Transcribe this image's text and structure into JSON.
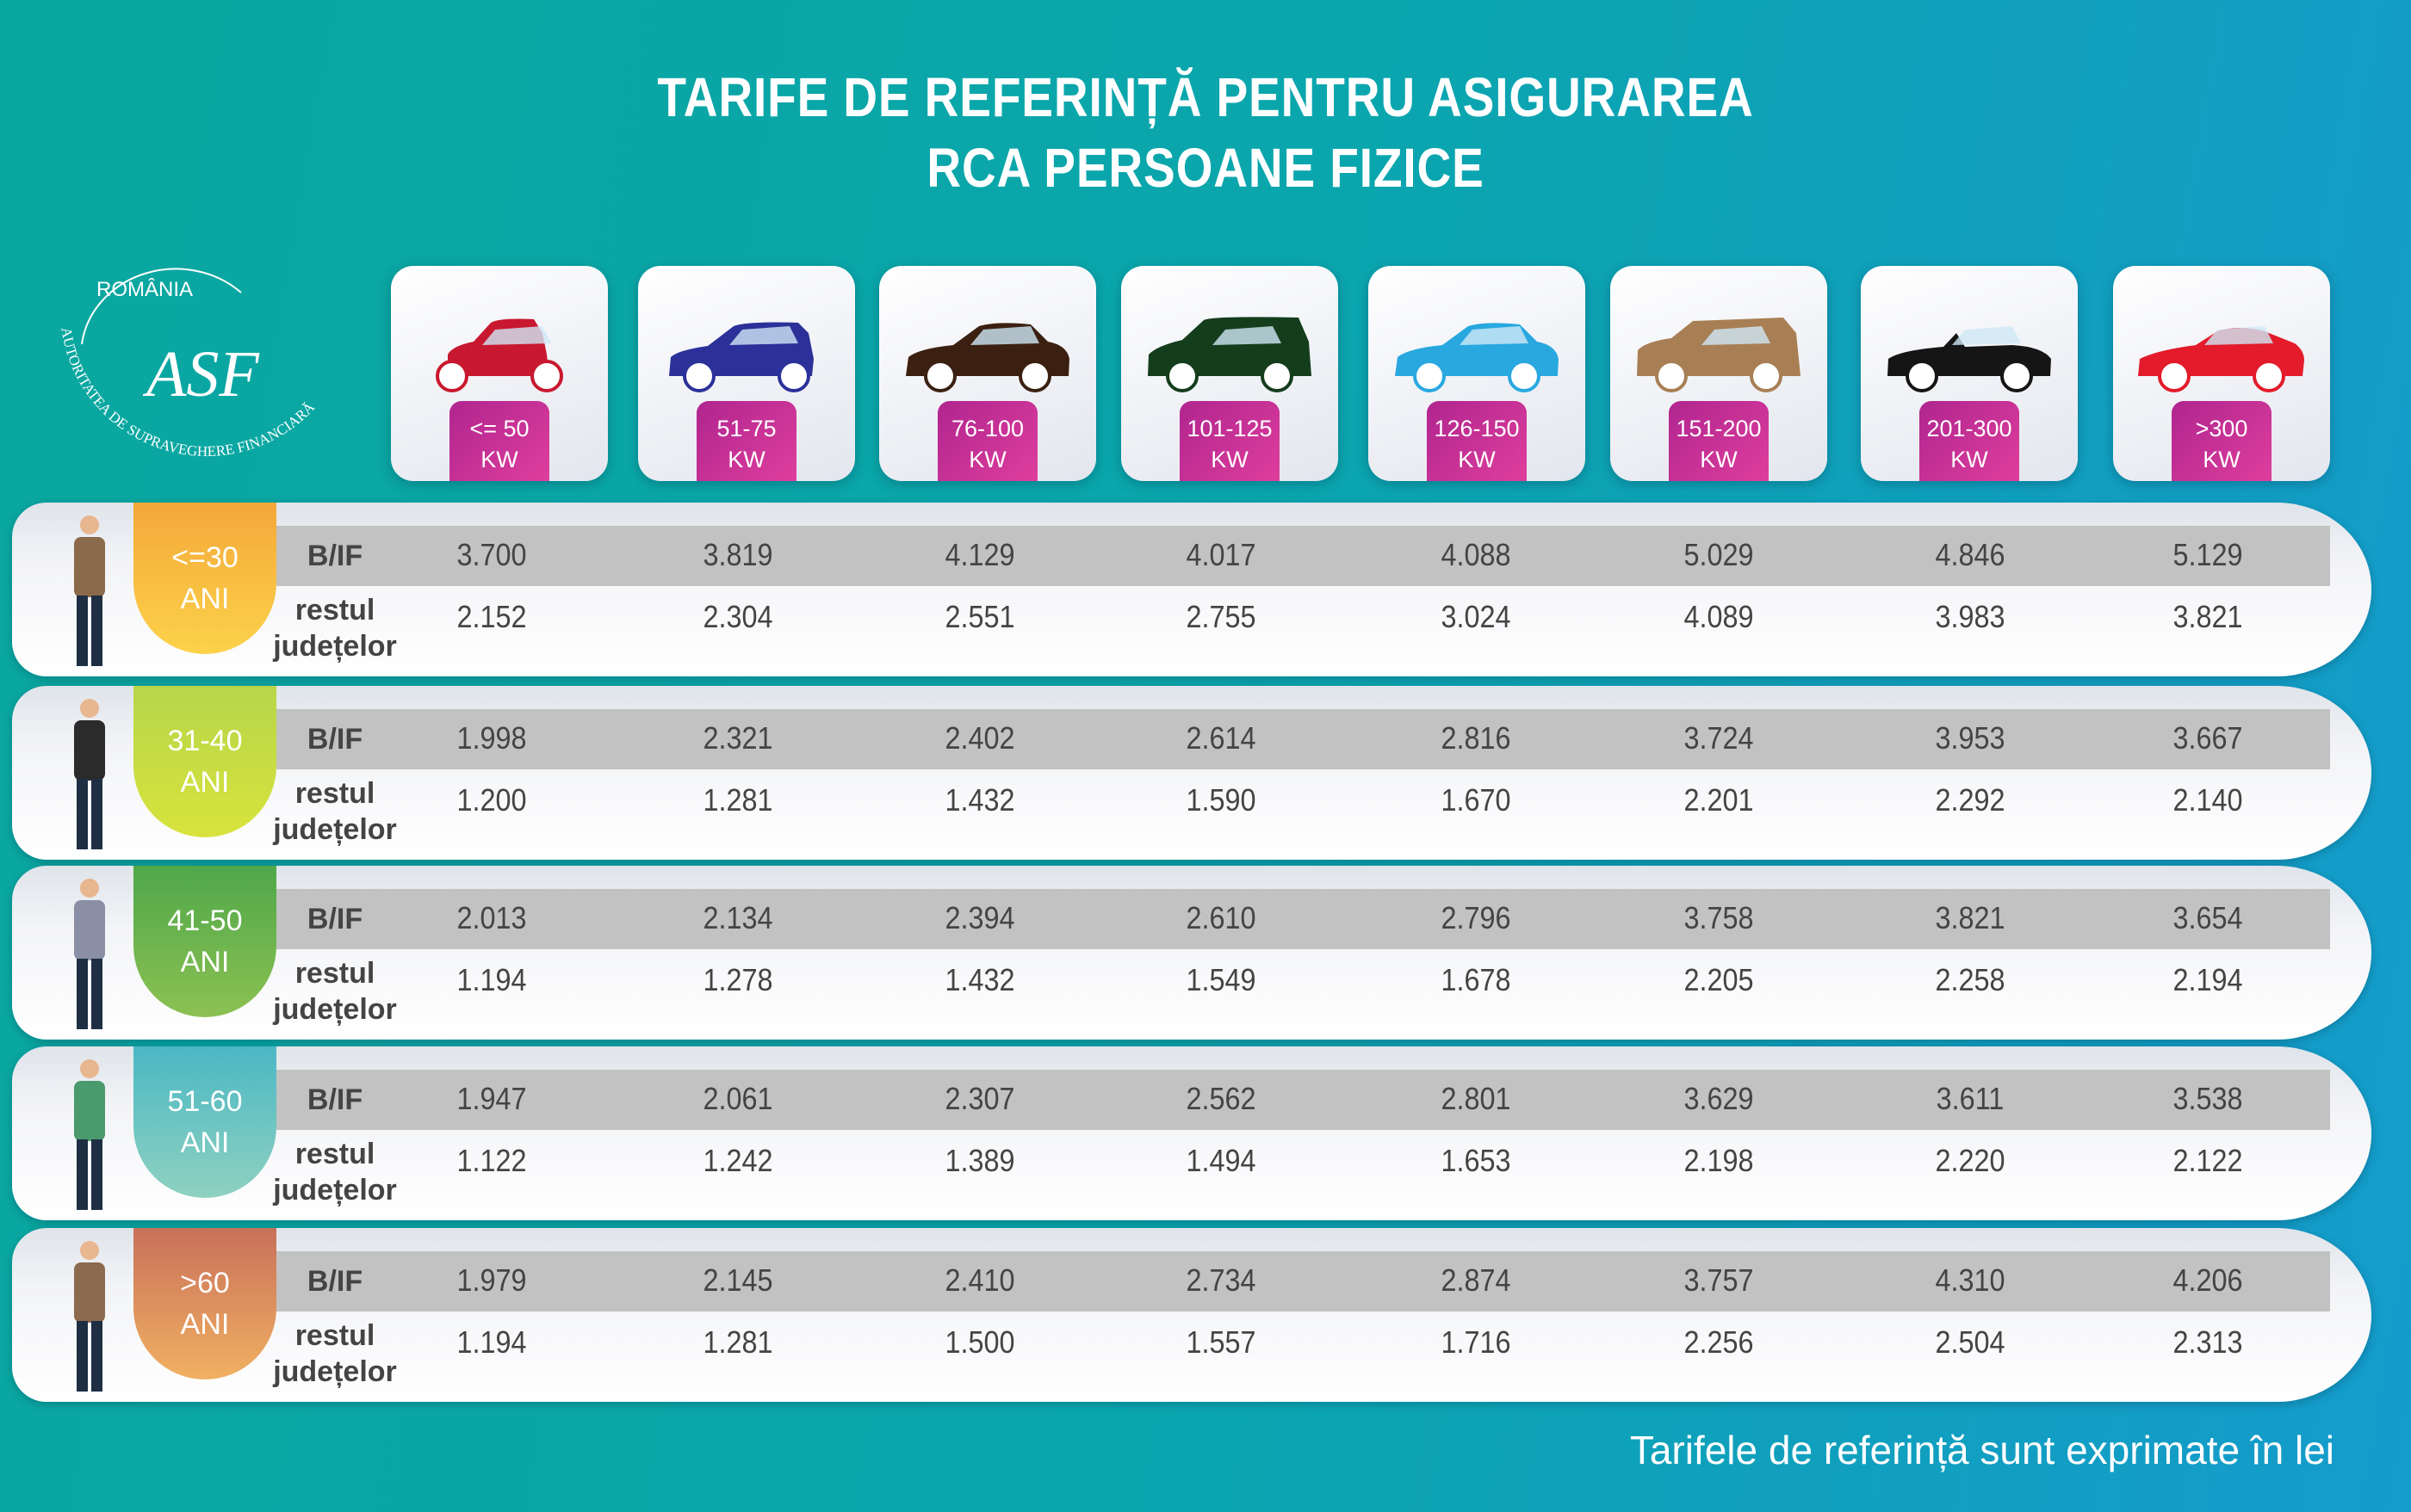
{
  "title": {
    "line1": "TARIFE DE REFERINȚĂ PENTRU ASIGURAREA",
    "line2": "RCA PERSOANE FIZICE"
  },
  "logo": {
    "top": "ROMÂNIA",
    "arc": "AUTORITATEA DE SUPRAVEGHERE FINANCIARĂ",
    "mark": "ASF"
  },
  "columns": [
    {
      "range": "<= 50",
      "unit": "KW",
      "car_color": "#c8182f",
      "car_icon": "small-hatchback-icon"
    },
    {
      "range": "51-75",
      "unit": "KW",
      "car_color": "#2b3199",
      "car_icon": "hatchback-icon"
    },
    {
      "range": "76-100",
      "unit": "KW",
      "car_color": "#3b2011",
      "car_icon": "sedan-icon"
    },
    {
      "range": "101-125",
      "unit": "KW",
      "car_color": "#143d1c",
      "car_icon": "minivan-icon"
    },
    {
      "range": "126-150",
      "unit": "KW",
      "car_color": "#29a8e0",
      "car_icon": "sedan-icon"
    },
    {
      "range": "151-200",
      "unit": "KW",
      "car_color": "#a87f55",
      "car_icon": "suv-icon"
    },
    {
      "range": "201-300",
      "unit": "KW",
      "car_color": "#151515",
      "car_icon": "convertible-icon"
    },
    {
      "range": ">300",
      "unit": "KW",
      "car_color": "#e31b2a",
      "car_icon": "sports-car-icon"
    }
  ],
  "row_labels": {
    "bif": "B/IF",
    "rest1": "restul",
    "rest2": "județelor"
  },
  "rows": [
    {
      "age": "<=30",
      "ani": "ANI",
      "color1": "#f4a83a",
      "color2": "#fcd24a",
      "bif": [
        "3.700",
        "3.819",
        "4.129",
        "4.017",
        "4.088",
        "5.029",
        "4.846",
        "5.129"
      ],
      "rest": [
        "2.152",
        "2.304",
        "2.551",
        "2.755",
        "3.024",
        "4.089",
        "3.983",
        "3.821"
      ]
    },
    {
      "age": "31-40",
      "ani": "ANI",
      "color1": "#b6d64a",
      "color2": "#d8e33c",
      "bif": [
        "1.998",
        "2.321",
        "2.402",
        "2.614",
        "2.816",
        "3.724",
        "3.953",
        "3.667"
      ],
      "rest": [
        "1.200",
        "1.281",
        "1.432",
        "1.590",
        "1.670",
        "2.201",
        "2.292",
        "2.140"
      ]
    },
    {
      "age": "41-50",
      "ani": "ANI",
      "color1": "#4fa74a",
      "color2": "#8cc152",
      "bif": [
        "2.013",
        "2.134",
        "2.394",
        "2.610",
        "2.796",
        "3.758",
        "3.821",
        "3.654"
      ],
      "rest": [
        "1.194",
        "1.278",
        "1.432",
        "1.549",
        "1.678",
        "2.205",
        "2.258",
        "2.194"
      ]
    },
    {
      "age": "51-60",
      "ani": "ANI",
      "color1": "#4bb8c4",
      "color2": "#8fd1c0",
      "bif": [
        "1.947",
        "2.061",
        "2.307",
        "2.562",
        "2.801",
        "3.629",
        "3.611",
        "3.538"
      ],
      "rest": [
        "1.122",
        "1.242",
        "1.389",
        "1.494",
        "1.653",
        "2.198",
        "2.220",
        "2.122"
      ]
    },
    {
      "age": ">60",
      "ani": "ANI",
      "color1": "#c8715a",
      "color2": "#f1b062",
      "bif": [
        "1.979",
        "2.145",
        "2.410",
        "2.734",
        "2.874",
        "3.757",
        "4.310",
        "4.206"
      ],
      "rest": [
        "1.194",
        "1.281",
        "1.500",
        "1.557",
        "1.716",
        "2.256",
        "2.504",
        "2.313"
      ]
    }
  ],
  "footer": "Tarifele de referință sunt exprimate în lei"
}
